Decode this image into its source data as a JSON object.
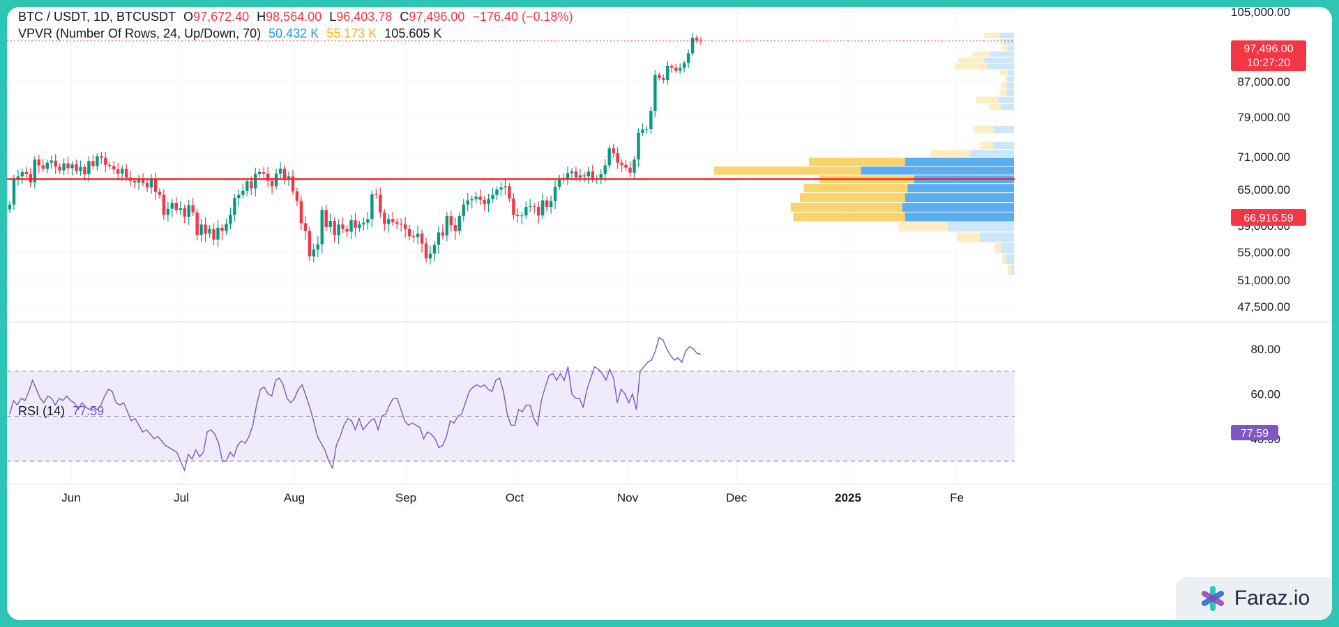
{
  "legend": {
    "symbol": "BTC / USDT, 1D, BTCUSDT",
    "open_label": "O",
    "open": "97,672.40",
    "high_label": "H",
    "high": "98,564.00",
    "low_label": "L",
    "low": "96,403.78",
    "close_label": "C",
    "close": "97,496.00",
    "change": "−176.40 (−0.18%)",
    "vpvr_title": "VPVR (Number Of Rows, 24, Up/Down, 70)",
    "vpvr_up": "50.432 K",
    "vpvr_down": "55.173 K",
    "vpvr_total": "105.605 K",
    "rsi_title": "RSI (14)",
    "rsi_value": "77.59"
  },
  "price_tags": {
    "last_price": "97,496.00",
    "countdown": "10:27:20",
    "level": "66,916.59",
    "rsi": "77.59"
  },
  "watermark": {
    "brand": "Faraz.io",
    "icon": "faraz-logo-icon"
  },
  "colors": {
    "up": "#089981",
    "down": "#f23645",
    "level_line": "#ff1e1e",
    "rsi_line": "#7e57c2",
    "vp_up": "#2196f3",
    "vp_down": "#f7c23a"
  },
  "chart_data": [
    {
      "type": "candlestick",
      "title": "BTC / USDT, 1D, BTCUSDT",
      "y_ticks": [
        105000,
        87000,
        79000,
        71000,
        65000,
        59000,
        55000,
        51000,
        47500
      ],
      "y_tick_labels": [
        "105,000.00",
        "87,000.00",
        "79,000.00",
        "71,000.00",
        "65,000.00",
        "59,000.00",
        "55,000.00",
        "51,000.00",
        "47,500.00"
      ],
      "x_labels": [
        "Jun",
        "Jul",
        "Aug",
        "Sep",
        "Oct",
        "Nov",
        "Dec",
        "2025",
        "Fe"
      ],
      "horizontal_level": 66916.59,
      "last_close": 97496.0,
      "daily_closes": [
        62500,
        66800,
        67400,
        68200,
        67800,
        66300,
        70500,
        69400,
        68800,
        69900,
        70300,
        69200,
        68500,
        69800,
        68900,
        69600,
        68400,
        69100,
        67800,
        70200,
        69300,
        71100,
        70800,
        69500,
        69300,
        68700,
        67900,
        68800,
        67200,
        66600,
        66300,
        66800,
        66200,
        65400,
        66900,
        64600,
        64100,
        60800,
        61800,
        62800,
        61600,
        61900,
        60500,
        62400,
        61200,
        57600,
        59200,
        57800,
        58500,
        56900,
        58700,
        58200,
        59300,
        60800,
        63600,
        64100,
        64800,
        66500,
        65200,
        67800,
        68200,
        67900,
        66600,
        65600,
        67900,
        68800,
        67000,
        67400,
        64700,
        63100,
        59400,
        58200,
        54400,
        55400,
        56200,
        61600,
        58800,
        59800,
        57600,
        59200,
        58500,
        58100,
        59900,
        58700,
        59200,
        59500,
        60100,
        64200,
        64100,
        61200,
        59300,
        60100,
        59600,
        59300,
        59200,
        58500,
        57400,
        57300,
        57800,
        56300,
        54100,
        54800,
        56100,
        58000,
        57500,
        60600,
        59100,
        58200,
        60600,
        62500,
        63200,
        63400,
        63800,
        63300,
        62600,
        63400,
        64100,
        65000,
        65400,
        65600,
        63500,
        60800,
        60600,
        60700,
        62100,
        62200,
        62100,
        60700,
        63200,
        62100,
        63100,
        65500,
        67100,
        66900,
        68000,
        68300,
        67200,
        67600,
        67400,
        68300,
        66900,
        67100,
        67800,
        69400,
        72700,
        71700,
        69900,
        69500,
        69000,
        68100,
        70500,
        75800,
        76500,
        76600,
        80400,
        88700,
        87900,
        87400,
        91000,
        90600,
        89800,
        90500,
        91800,
        94300,
        98300,
        97672,
        97496
      ]
    },
    {
      "type": "volume_profile",
      "title": "VPVR (Number Of Rows, 24, Up/Down, 70)",
      "up_total": "50.432 K",
      "down_total": "55.173 K",
      "total": "105.605 K",
      "rows": [
        {
          "low": 98000,
          "high": 99600,
          "up": 1.1,
          "down": 1.2
        },
        {
          "low": 96400,
          "high": 98000,
          "up": 0.8,
          "down": 0.3
        },
        {
          "low": 94800,
          "high": 96400,
          "up": 0.5,
          "down": 0.4
        },
        {
          "low": 93200,
          "high": 94800,
          "up": 1.9,
          "down": 1.3
        },
        {
          "low": 91600,
          "high": 93200,
          "up": 2.3,
          "down": 2.0
        },
        {
          "low": 90000,
          "high": 91600,
          "up": 2.1,
          "down": 2.5
        },
        {
          "low": 88400,
          "high": 90000,
          "up": 0.5,
          "down": 0.6
        },
        {
          "low": 86800,
          "high": 88400,
          "up": 0.5,
          "down": 0.2
        },
        {
          "low": 85200,
          "high": 86800,
          "up": 0.6,
          "down": 0.4
        },
        {
          "low": 83600,
          "high": 85200,
          "up": 0.6,
          "down": 0.5
        },
        {
          "low": 82000,
          "high": 83600,
          "up": 1.2,
          "down": 1.7
        },
        {
          "low": 80400,
          "high": 82000,
          "up": 1.0,
          "down": 0.9
        },
        {
          "low": 75600,
          "high": 77200,
          "up": 1.6,
          "down": 1.5
        },
        {
          "low": 72400,
          "high": 74000,
          "up": 1.6,
          "down": 1.0
        },
        {
          "low": 70800,
          "high": 72400,
          "up": 3.4,
          "down": 3.0
        },
        {
          "low": 69200,
          "high": 70800,
          "up": 8.4,
          "down": 7.4
        },
        {
          "low": 67600,
          "high": 69200,
          "up": 11.8,
          "down": 11.3
        },
        {
          "low": 66000,
          "high": 67600,
          "up": 7.7,
          "down": 7.3
        },
        {
          "low": 64400,
          "high": 66000,
          "up": 8.2,
          "down": 8.0
        },
        {
          "low": 62800,
          "high": 64400,
          "up": 8.4,
          "down": 8.1
        },
        {
          "low": 61200,
          "high": 62800,
          "up": 8.6,
          "down": 8.6
        },
        {
          "low": 59600,
          "high": 61200,
          "up": 8.4,
          "down": 8.6
        },
        {
          "low": 58000,
          "high": 59600,
          "up": 5.1,
          "down": 3.8
        },
        {
          "low": 56400,
          "high": 58000,
          "up": 2.6,
          "down": 1.8
        },
        {
          "low": 54800,
          "high": 56400,
          "up": 1.0,
          "down": 0.5
        },
        {
          "low": 53200,
          "high": 54800,
          "up": 0.6,
          "down": 0.3
        },
        {
          "low": 51600,
          "high": 53200,
          "up": 0.2,
          "down": 0.3
        }
      ]
    },
    {
      "type": "line",
      "title": "RSI (14)",
      "current": 77.59,
      "y_ticks": [
        80,
        60,
        40
      ],
      "y_tick_labels": [
        "80.00",
        "60.00",
        "40.00"
      ],
      "band": [
        30,
        70
      ],
      "midline": 50,
      "values": [
        51,
        57,
        55,
        58,
        57,
        61,
        66,
        62,
        58,
        56,
        59,
        58,
        55,
        58,
        57,
        59,
        57,
        56,
        53,
        56,
        54,
        53,
        54,
        53,
        55,
        59,
        62,
        61,
        56,
        55,
        56,
        52,
        48,
        49,
        46,
        43,
        44,
        42,
        40,
        41,
        39,
        37,
        36,
        35,
        34,
        30,
        26,
        33,
        31,
        35,
        32,
        34,
        43,
        44,
        42,
        38,
        30,
        30,
        34,
        32,
        37,
        39,
        38,
        41,
        46,
        55,
        62,
        63,
        60,
        59,
        66,
        67,
        64,
        58,
        56,
        58,
        62,
        64,
        59,
        54,
        48,
        41,
        38,
        35,
        30,
        27,
        37,
        41,
        46,
        49,
        48,
        44,
        49,
        44,
        46,
        48,
        49,
        44,
        50,
        51,
        55,
        58,
        58,
        53,
        48,
        46,
        47,
        46,
        45,
        40,
        43,
        42,
        40,
        36,
        37,
        41,
        48,
        47,
        50,
        51,
        56,
        61,
        63,
        64,
        63,
        64,
        62,
        61,
        66,
        67,
        61,
        51,
        46,
        46,
        53,
        52,
        55,
        55,
        49,
        46,
        57,
        63,
        68,
        69,
        66,
        69,
        66,
        72,
        60,
        58,
        58,
        54,
        62,
        67,
        72,
        71,
        69,
        66,
        71,
        67,
        56,
        62,
        60,
        56,
        60,
        53,
        70,
        72,
        74,
        75,
        79,
        85,
        84,
        80,
        77,
        75,
        76,
        74,
        79,
        81,
        80,
        78,
        77.59
      ]
    }
  ]
}
